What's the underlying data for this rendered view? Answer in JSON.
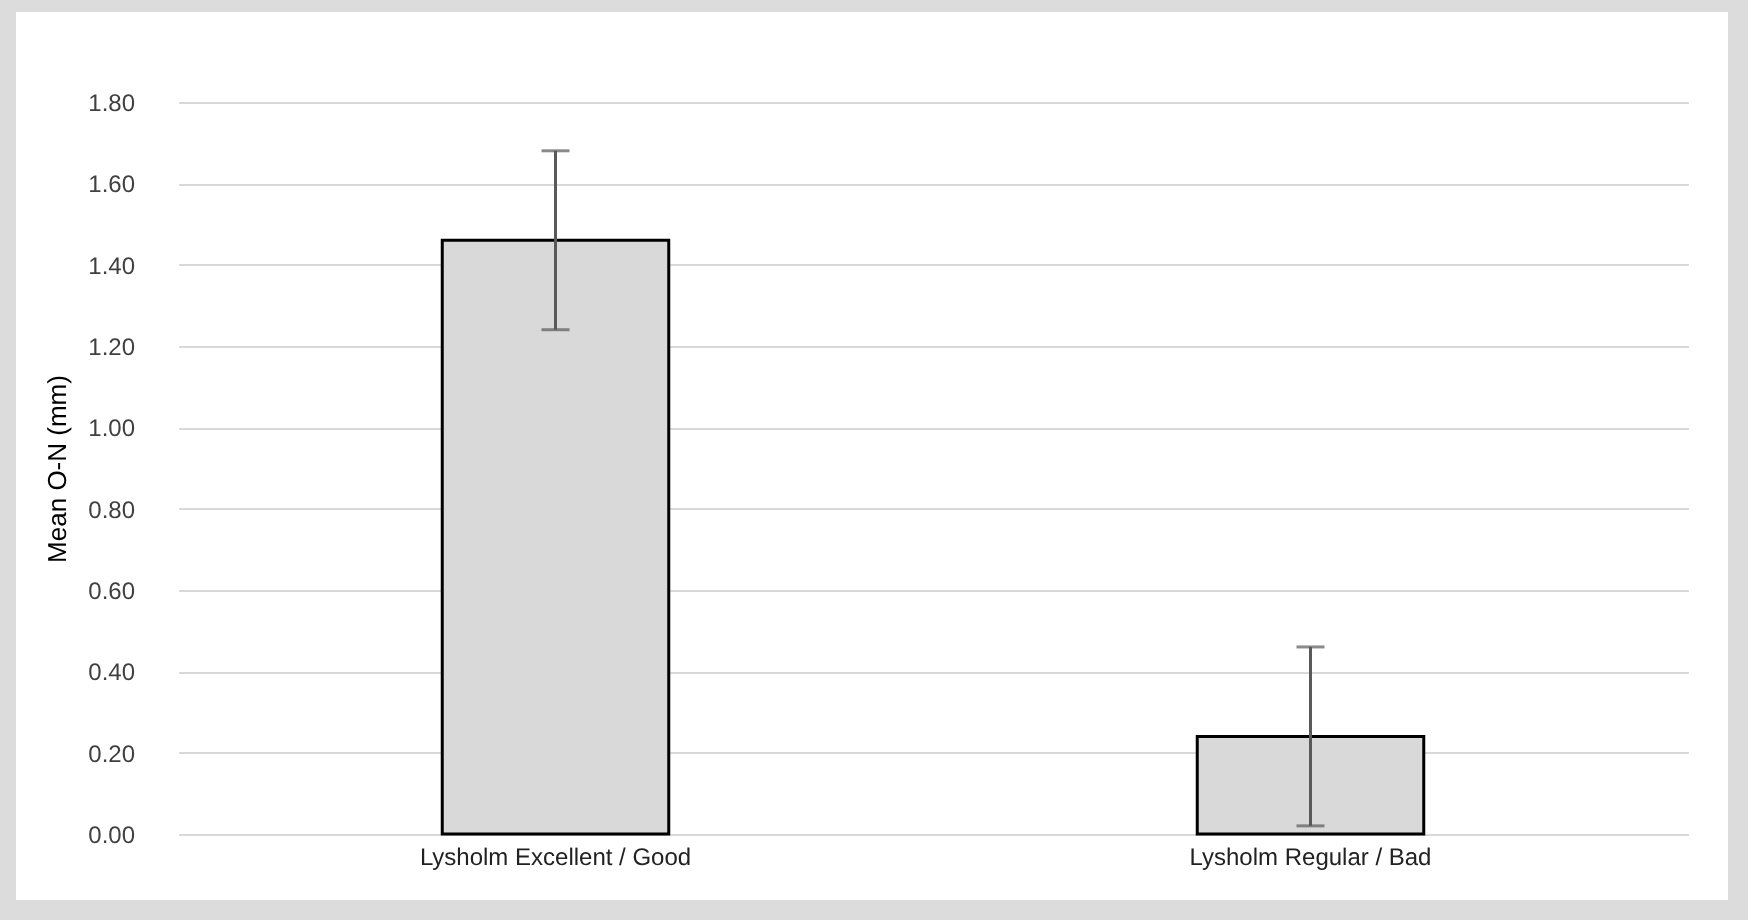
{
  "chart_data": {
    "type": "bar",
    "ylabel": "Mean O-N (mm)",
    "categories": [
      "Lysholm Excellent / Good",
      "Lysholm Regular / Bad"
    ],
    "series": [
      {
        "color": "#d9d9d9",
        "values": [
          1.46,
          0.24
        ],
        "errors": [
          0.22,
          0.22
        ]
      }
    ],
    "ylim": [
      0,
      1.8
    ],
    "yticks": [
      {
        "value": 0,
        "label": "0.00"
      },
      {
        "value": 0.2,
        "label": "0.20"
      },
      {
        "value": 0.4,
        "label": "0.40"
      },
      {
        "value": 0.6,
        "label": "0.60"
      },
      {
        "value": 0.8,
        "label": "0.80"
      },
      {
        "value": 1.0,
        "label": "1.00"
      },
      {
        "value": 1.2,
        "label": "1.20"
      },
      {
        "value": 1.4,
        "label": "1.40"
      },
      {
        "value": 1.6,
        "label": "1.60"
      },
      {
        "value": 1.8,
        "label": "1.80"
      }
    ],
    "grid": "y",
    "legend": false
  }
}
